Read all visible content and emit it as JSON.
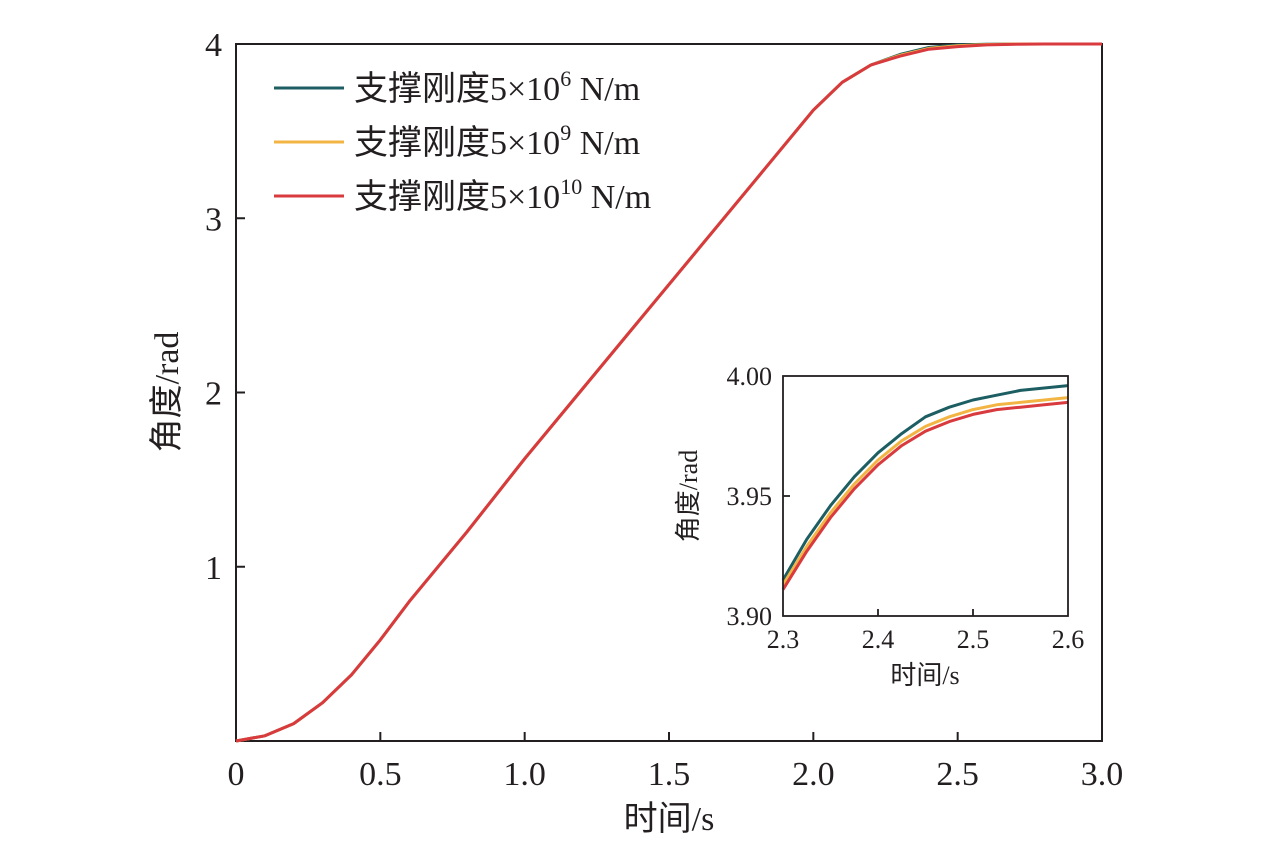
{
  "chart_data": [
    {
      "type": "line",
      "xlabel": "时间/s",
      "ylabel": "角度/rad",
      "xlim": [
        0,
        3.0
      ],
      "ylim": [
        0,
        4
      ],
      "x_ticks": [
        "0",
        "0.5",
        "1.0",
        "1.5",
        "2.0",
        "2.5",
        "3.0"
      ],
      "x_tick_values": [
        0,
        0.5,
        1.0,
        1.5,
        2.0,
        2.5,
        3.0
      ],
      "y_ticks": [
        "1",
        "2",
        "3",
        "4"
      ],
      "y_tick_values": [
        1,
        2,
        3,
        4
      ],
      "legend_position": "top-left",
      "series": [
        {
          "legend_prefix": "支撑刚度5×10",
          "legend_exp": "6",
          "legend_suffix": " N/m",
          "color": "#1d5e63",
          "x": [
            0,
            0.1,
            0.2,
            0.3,
            0.4,
            0.5,
            0.6,
            0.8,
            1.0,
            1.2,
            1.4,
            1.6,
            1.8,
            2.0,
            2.1,
            2.2,
            2.3,
            2.4,
            2.5,
            2.6,
            2.7,
            2.8,
            3.0
          ],
          "y": [
            0,
            0.03,
            0.1,
            0.22,
            0.38,
            0.58,
            0.8,
            1.2,
            1.62,
            2.02,
            2.42,
            2.82,
            3.22,
            3.62,
            3.78,
            3.88,
            3.94,
            3.98,
            3.995,
            3.999,
            4.0,
            4.0,
            4.0
          ]
        },
        {
          "legend_prefix": "支撑刚度5×10",
          "legend_exp": "9",
          "legend_suffix": " N/m",
          "color": "#f2b544",
          "x": [
            0,
            0.1,
            0.2,
            0.3,
            0.4,
            0.5,
            0.6,
            0.8,
            1.0,
            1.2,
            1.4,
            1.6,
            1.8,
            2.0,
            2.1,
            2.2,
            2.3,
            2.4,
            2.5,
            2.6,
            2.7,
            2.8,
            3.0
          ],
          "y": [
            0,
            0.03,
            0.1,
            0.22,
            0.38,
            0.58,
            0.8,
            1.2,
            1.62,
            2.02,
            2.42,
            2.82,
            3.22,
            3.62,
            3.78,
            3.88,
            3.935,
            3.975,
            3.99,
            3.997,
            4.0,
            4.0,
            4.0
          ]
        },
        {
          "legend_prefix": "支撑刚度5×10",
          "legend_exp": "10",
          "legend_suffix": " N/m",
          "color": "#d93a3e",
          "x": [
            0,
            0.1,
            0.2,
            0.3,
            0.4,
            0.5,
            0.6,
            0.8,
            1.0,
            1.2,
            1.4,
            1.6,
            1.8,
            2.0,
            2.1,
            2.2,
            2.3,
            2.4,
            2.5,
            2.6,
            2.7,
            2.8,
            3.0
          ],
          "y": [
            0,
            0.03,
            0.1,
            0.22,
            0.38,
            0.58,
            0.8,
            1.2,
            1.62,
            2.02,
            2.42,
            2.82,
            3.22,
            3.62,
            3.78,
            3.88,
            3.93,
            3.97,
            3.985,
            3.995,
            3.999,
            4.0,
            4.0
          ]
        }
      ]
    },
    {
      "type": "line",
      "xlabel": "时间/s",
      "ylabel": "角度/rad",
      "xlim": [
        2.3,
        2.6
      ],
      "ylim": [
        3.9,
        4.0
      ],
      "x_ticks": [
        "2.3",
        "2.4",
        "2.5",
        "2.6"
      ],
      "x_tick_values": [
        2.3,
        2.4,
        2.5,
        2.6
      ],
      "y_ticks": [
        "3.90",
        "3.95",
        "4.00"
      ],
      "y_tick_values": [
        3.9,
        3.95,
        4.0
      ],
      "series": [
        {
          "color": "#1d5e63",
          "x": [
            2.3,
            2.325,
            2.35,
            2.375,
            2.4,
            2.425,
            2.45,
            2.475,
            2.5,
            2.525,
            2.55,
            2.575,
            2.6
          ],
          "y": [
            3.915,
            3.932,
            3.946,
            3.958,
            3.968,
            3.976,
            3.983,
            3.987,
            3.99,
            3.992,
            3.994,
            3.995,
            3.996
          ]
        },
        {
          "color": "#f2b544",
          "x": [
            2.3,
            2.325,
            2.35,
            2.375,
            2.4,
            2.425,
            2.45,
            2.475,
            2.5,
            2.525,
            2.55,
            2.575,
            2.6
          ],
          "y": [
            3.913,
            3.929,
            3.943,
            3.955,
            3.965,
            3.973,
            3.979,
            3.983,
            3.986,
            3.988,
            3.989,
            3.99,
            3.991
          ]
        },
        {
          "color": "#d93a3e",
          "x": [
            2.3,
            2.325,
            2.35,
            2.375,
            2.4,
            2.425,
            2.45,
            2.475,
            2.5,
            2.525,
            2.55,
            2.575,
            2.6
          ],
          "y": [
            3.911,
            3.927,
            3.941,
            3.953,
            3.963,
            3.971,
            3.977,
            3.981,
            3.984,
            3.986,
            3.987,
            3.988,
            3.989
          ]
        }
      ]
    }
  ]
}
